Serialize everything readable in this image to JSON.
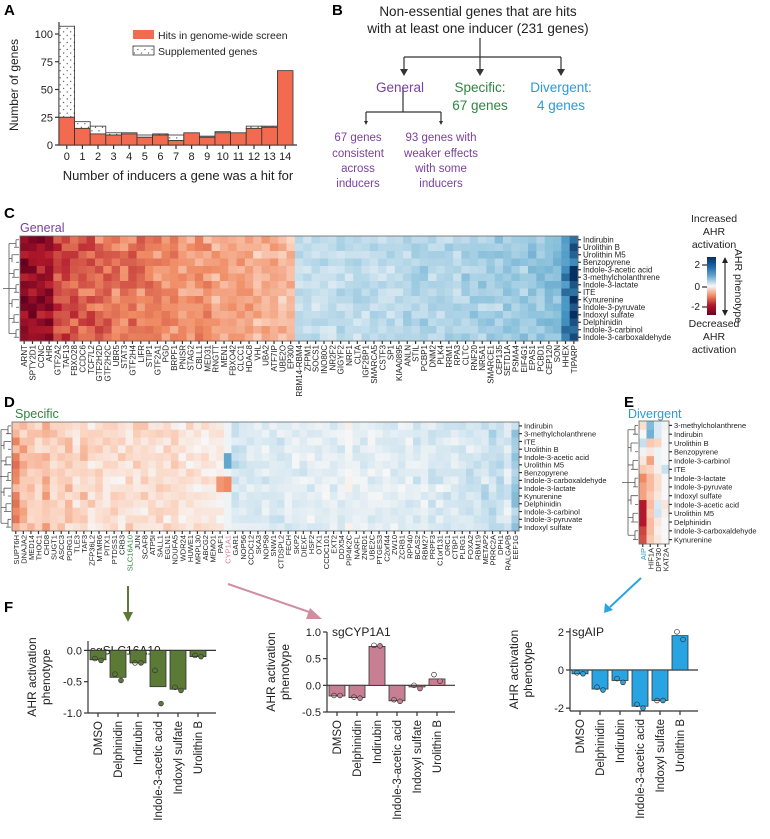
{
  "panels": {
    "a": "A",
    "b": "B",
    "c": "C",
    "d": "D",
    "e": "E",
    "f": "F"
  },
  "colors": {
    "general": "#7b3fa0",
    "specific": "#2e8540",
    "divergent": "#2a9ad8",
    "hits": "#f26a4f",
    "slc": "#5b7a36",
    "cyp": "#c97f93",
    "aip": "#29a4e2"
  },
  "panel_b": {
    "title_line1": "Non-essential genes that are hits",
    "title_line2": "with at least one inducer (231 genes)",
    "general": "General",
    "specific_1": "Specific:",
    "specific_2": "67 genes",
    "divergent_1": "Divergent:",
    "divergent_2": "4 genes",
    "sub1": [
      "67 genes",
      "consistent",
      "across",
      "inducers"
    ],
    "sub2": [
      "93 genes with",
      "weaker effects",
      "with some",
      "inducers"
    ]
  },
  "colorbar": {
    "top": [
      "Increased",
      "AHR",
      "activation"
    ],
    "bottom": [
      "Decreased",
      "AHR",
      "activation"
    ],
    "label": "AHR phenotype",
    "ticks": [
      "2",
      "0",
      "-2"
    ],
    "tick_values": [
      2,
      0,
      -2
    ],
    "range": [
      -3,
      3
    ]
  },
  "chart_data": [
    {
      "id": "A",
      "type": "bar",
      "stacked": true,
      "xlabel": "Number of inducers a gene was a hit for",
      "ylabel": "Number of genes",
      "categories": [
        "0",
        "1",
        "2",
        "3",
        "4",
        "5",
        "6",
        "7",
        "8",
        "9",
        "10",
        "11",
        "12",
        "13",
        "14"
      ],
      "yticks": [
        "0",
        "25",
        "50",
        "75",
        "100"
      ],
      "ylim": [
        0,
        110
      ],
      "series": [
        {
          "name": "Hits in genome-wide screen",
          "values": [
            25,
            15,
            10,
            9,
            10,
            7,
            9,
            4,
            11,
            7,
            11,
            11,
            15,
            16,
            67
          ]
        },
        {
          "name": "Supplemented genes",
          "values": [
            82,
            6,
            7,
            2,
            1,
            2,
            1,
            5,
            0,
            1,
            1,
            0,
            2,
            1,
            0
          ]
        }
      ],
      "legend": "top-right"
    },
    {
      "id": "C",
      "type": "heatmap",
      "title": "General",
      "rows": [
        "Indirubin",
        "Urolithin B",
        "Urolithin M5",
        "Benzopyrene",
        "Indole-3-acetic acid",
        "3-methylcholanthrene",
        "Indole-3-lactate",
        "ITE",
        "Kynurenine",
        "Indole-3-pyruvate",
        "Indoxyl sulfate",
        "Delphinidin",
        "Indole-3-carbinol",
        "Indole-3-carboxaldehyde"
      ],
      "columns": [
        "ARNT",
        "SPTY2D1",
        "CCNC",
        "AHR",
        "GTF2A2",
        "TAF13",
        "FBXO28",
        "CCDC6",
        "TCF7L2",
        "GTF2H2D",
        "GTF2H2C",
        "UBR5",
        "STAT3",
        "GTF2H4",
        "LIFR",
        "STIP1",
        "GTF2A1",
        "PGD",
        "BRPF1",
        "PNISR",
        "STAG2",
        "CBLL1",
        "MED31",
        "RNGTT",
        "MEN1",
        "FBXO42",
        "CLCC1",
        "HDAC8",
        "VHL",
        "UBA2",
        "ATF7IP",
        "UBE2O",
        "EP300",
        "RBM14-RBM4",
        "ZFPM1",
        "SOCS1",
        "INO80C",
        "NR2F2",
        "GIGYF2",
        "NRF1",
        "CLTA",
        "IGF2BP1",
        "SMARCA5",
        "CSTF3",
        "SP1",
        "KIAA0895",
        "ANLN",
        "STIL",
        "PCBP1",
        "DNM2",
        "PLK4",
        "RRM1",
        "RPA3",
        "CLTC",
        "RNF20",
        "NR5A1",
        "SMARCE1",
        "CEP135",
        "SETD1A",
        "PSMA4",
        "EIF4G1",
        "EPAS1",
        "PCBD1",
        "CEP120",
        "SON",
        "HHEX",
        "TIPARP"
      ],
      "column_means": [
        -2.5,
        -2.7,
        -2.3,
        -2.2,
        -1.6,
        -1.5,
        -1.5,
        -1.4,
        -1.4,
        -1.3,
        -1.3,
        -1.2,
        -1.2,
        -1.2,
        -1.1,
        -1.1,
        -1.0,
        -1.0,
        -1.0,
        -0.9,
        -0.9,
        -0.9,
        -0.9,
        -0.8,
        -0.8,
        -0.8,
        -0.8,
        -0.7,
        -0.7,
        -0.7,
        -0.7,
        -0.6,
        -0.6,
        0.5,
        0.5,
        0.5,
        0.5,
        0.5,
        0.6,
        0.6,
        0.6,
        0.6,
        0.6,
        0.6,
        0.6,
        0.6,
        0.7,
        0.7,
        0.7,
        0.7,
        0.7,
        0.7,
        0.7,
        0.8,
        0.8,
        0.8,
        0.8,
        0.8,
        0.9,
        0.9,
        0.9,
        1.0,
        1.0,
        1.1,
        1.2,
        2.0,
        2.8
      ]
    },
    {
      "id": "D",
      "type": "heatmap",
      "title": "Specific",
      "rows": [
        "Indirubin",
        "3-methylcholanthrene",
        "ITE",
        "Urolithin B",
        "Indole-3-acetic acid",
        "Urolithin M5",
        "Benzopyrene",
        "Indole-3-carboxaldehyde",
        "Indole-3-lactate",
        "Kynurenine",
        "Delphinidin",
        "Indole-3-carbinol",
        "Indole-3-pyruvate",
        "Indoxyl sulfate"
      ],
      "columns": [
        "SUPT6H",
        "DNAJA2",
        "MED14",
        "THOC1",
        "CHD8",
        "SUGT1",
        "ASCC3",
        "PDRG1",
        "TLE3",
        "TAF3",
        "ZFP36L2",
        "MTMR6",
        "PITX1",
        "PTDSS1",
        "CRB3",
        "SLC16A10",
        "JUN",
        "SCAF8",
        "ATP5I",
        "SALL1",
        "EGLN1",
        "NDUFA5",
        "WDR24",
        "HUWE1",
        "MRPL30",
        "ABCG2",
        "MEMO1",
        "PAF1",
        "CYP1A1",
        "GAR1",
        "NOP56",
        "CCDC12",
        "SKA3",
        "NOP58",
        "SNW1",
        "CTDSPL2",
        "FECH",
        "SKP2",
        "DIEXF",
        "HSF2",
        "OTX1",
        "CCDC101",
        "EXT2",
        "DDX54",
        "PIP4K2C",
        "NARFL",
        "ZNRD1",
        "UBE2C",
        "PTGES3",
        "C2orf44",
        "ZW10",
        "ZCRB1",
        "RPP40",
        "BCAS2",
        "RBM27",
        "PRPF3",
        "C1orf131",
        "ORC1",
        "CTBP1",
        "PLRG1",
        "FOXA2",
        "RBM19",
        "METAP2",
        "PRRC2A",
        "DPH1",
        "RALGAPB",
        "EEF1G"
      ],
      "highlight": {
        "SLC16A10": "#2e8540",
        "CYP1A1": "#d9799a"
      },
      "column_means": [
        -1.0,
        -0.6,
        -0.5,
        -0.4,
        -0.6,
        -0.4,
        -0.4,
        -0.4,
        -0.3,
        -0.4,
        -0.3,
        -0.3,
        -0.3,
        -0.3,
        -0.3,
        -0.3,
        -0.3,
        -0.3,
        -0.3,
        -0.3,
        -0.3,
        -0.3,
        -0.2,
        -0.2,
        -0.2,
        -0.2,
        -0.1,
        -0.1,
        0.0,
        0.4,
        0.3,
        0.3,
        0.3,
        0.3,
        0.3,
        0.3,
        0.3,
        0.2,
        0.3,
        0.2,
        0.2,
        0.2,
        0.2,
        0.2,
        0.1,
        0.2,
        0.2,
        0.2,
        0.2,
        0.2,
        0.2,
        0.2,
        0.2,
        0.3,
        0.2,
        0.3,
        0.3,
        0.3,
        0.3,
        0.4,
        0.4,
        0.4,
        0.5,
        0.5,
        0.5,
        0.3,
        0.9
      ]
    },
    {
      "id": "E",
      "type": "heatmap",
      "title": "Divergent",
      "rows": [
        "3-methylcholanthrene",
        "Indirubin",
        "Urolithin B",
        "Benzopyrene",
        "Indole-3-carbinol",
        "ITE",
        "Indole-3-lactate",
        "Indole-3-pyruvate",
        "Indoxyl sulfate",
        "Indole-3-acetic acid",
        "Urolithin M5",
        "Delphinidin",
        "Indole-3-carboxaldehyde",
        "Kynurenine"
      ],
      "columns": [
        "AIP",
        "HIF1A",
        "DPY30",
        "KAT2A"
      ],
      "highlight": {
        "AIP": "#2a9ad8"
      },
      "values": [
        [
          -0.3,
          1.2,
          0.3,
          0.1
        ],
        [
          0,
          1.4,
          0.3,
          0
        ],
        [
          0.5,
          -0.5,
          -0.4,
          0
        ],
        [
          0.1,
          -0.2,
          0.1,
          0
        ],
        [
          -0.2,
          -0.8,
          0.1,
          0
        ],
        [
          -0.5,
          -0.4,
          -0.1,
          0.5
        ],
        [
          -1.0,
          -0.6,
          -0.3,
          0
        ],
        [
          -0.8,
          -0.6,
          -0.3,
          0
        ],
        [
          -0.8,
          -0.5,
          -0.2,
          0
        ],
        [
          -2.0,
          -0.6,
          0.3,
          -0.2
        ],
        [
          -2.0,
          -0.5,
          0.4,
          -0.1
        ],
        [
          -2.0,
          -0.6,
          -0.2,
          0
        ],
        [
          -1.6,
          -0.6,
          -0.1,
          0
        ],
        [
          -1.5,
          -0.5,
          -0.2,
          0
        ]
      ]
    },
    {
      "id": "F1",
      "type": "bar",
      "title": "sgSLC16A10",
      "ylabel": [
        "AHR activation",
        "phenotype"
      ],
      "categories": [
        "DMSO",
        "Delphinidin",
        "Indirubin",
        "Indole-3-acetic acid",
        "Indoxyl sulfate",
        "Urolithin B"
      ],
      "values": [
        -0.15,
        -0.43,
        -0.2,
        -0.58,
        -0.62,
        -0.1
      ],
      "points": [
        [
          -0.13,
          -0.16
        ],
        [
          -0.38,
          -0.48
        ],
        [
          -0.2,
          -0.2
        ],
        [
          -0.32,
          -0.85
        ],
        [
          -0.59,
          -0.64
        ],
        [
          -0.08,
          -0.1
        ]
      ],
      "ylim": [
        -1.0,
        0.15
      ],
      "yticks": [
        0.0,
        -0.5,
        -1.0
      ],
      "ytick_labels": [
        "0.0",
        "-0.5",
        "-1.0"
      ]
    },
    {
      "id": "F2",
      "type": "bar",
      "title": "sgCYP1A1",
      "ylabel": [
        "AHR activation",
        "phenotype"
      ],
      "categories": [
        "DMSO",
        "Delphinidin",
        "Indirubin",
        "Indole-3-acetic acid",
        "Indoxyl sulfate",
        "Urolithin B"
      ],
      "values": [
        -0.2,
        -0.23,
        0.73,
        -0.29,
        -0.03,
        0.12
      ],
      "points": [
        [
          -0.19,
          -0.19
        ],
        [
          -0.22,
          -0.24
        ],
        [
          0.75,
          0.74
        ],
        [
          -0.27,
          -0.3
        ],
        [
          0.0,
          -0.06
        ],
        [
          0.2,
          0.08
        ]
      ],
      "ylim": [
        -0.5,
        1.0
      ],
      "yticks": [
        1.0,
        0.5,
        0.0,
        -0.5
      ],
      "ytick_labels": [
        "1.0",
        "0.5",
        "0.0",
        "-0.5"
      ]
    },
    {
      "id": "F3",
      "type": "bar",
      "title": "sgAIP",
      "ylabel": [
        "AHR activation",
        "phenotype"
      ],
      "categories": [
        "DMSO",
        "Delphinidin",
        "Indirubin",
        "Indole-3-acetic acid",
        "Indoxyl sulfate",
        "Urolithin B"
      ],
      "values": [
        -0.2,
        -1.0,
        -0.55,
        -1.9,
        -1.6,
        1.8
      ],
      "points": [
        [
          -0.15,
          -0.2
        ],
        [
          -0.9,
          -1.05
        ],
        [
          -0.45,
          -0.65
        ],
        [
          -1.8,
          -2.0
        ],
        [
          -1.6,
          -1.6
        ],
        [
          2.0,
          1.6
        ]
      ],
      "ylim": [
        -2.15,
        2.2
      ],
      "yticks": [
        2,
        0,
        -2
      ],
      "ytick_labels": [
        "2",
        "0",
        "-2"
      ]
    }
  ]
}
